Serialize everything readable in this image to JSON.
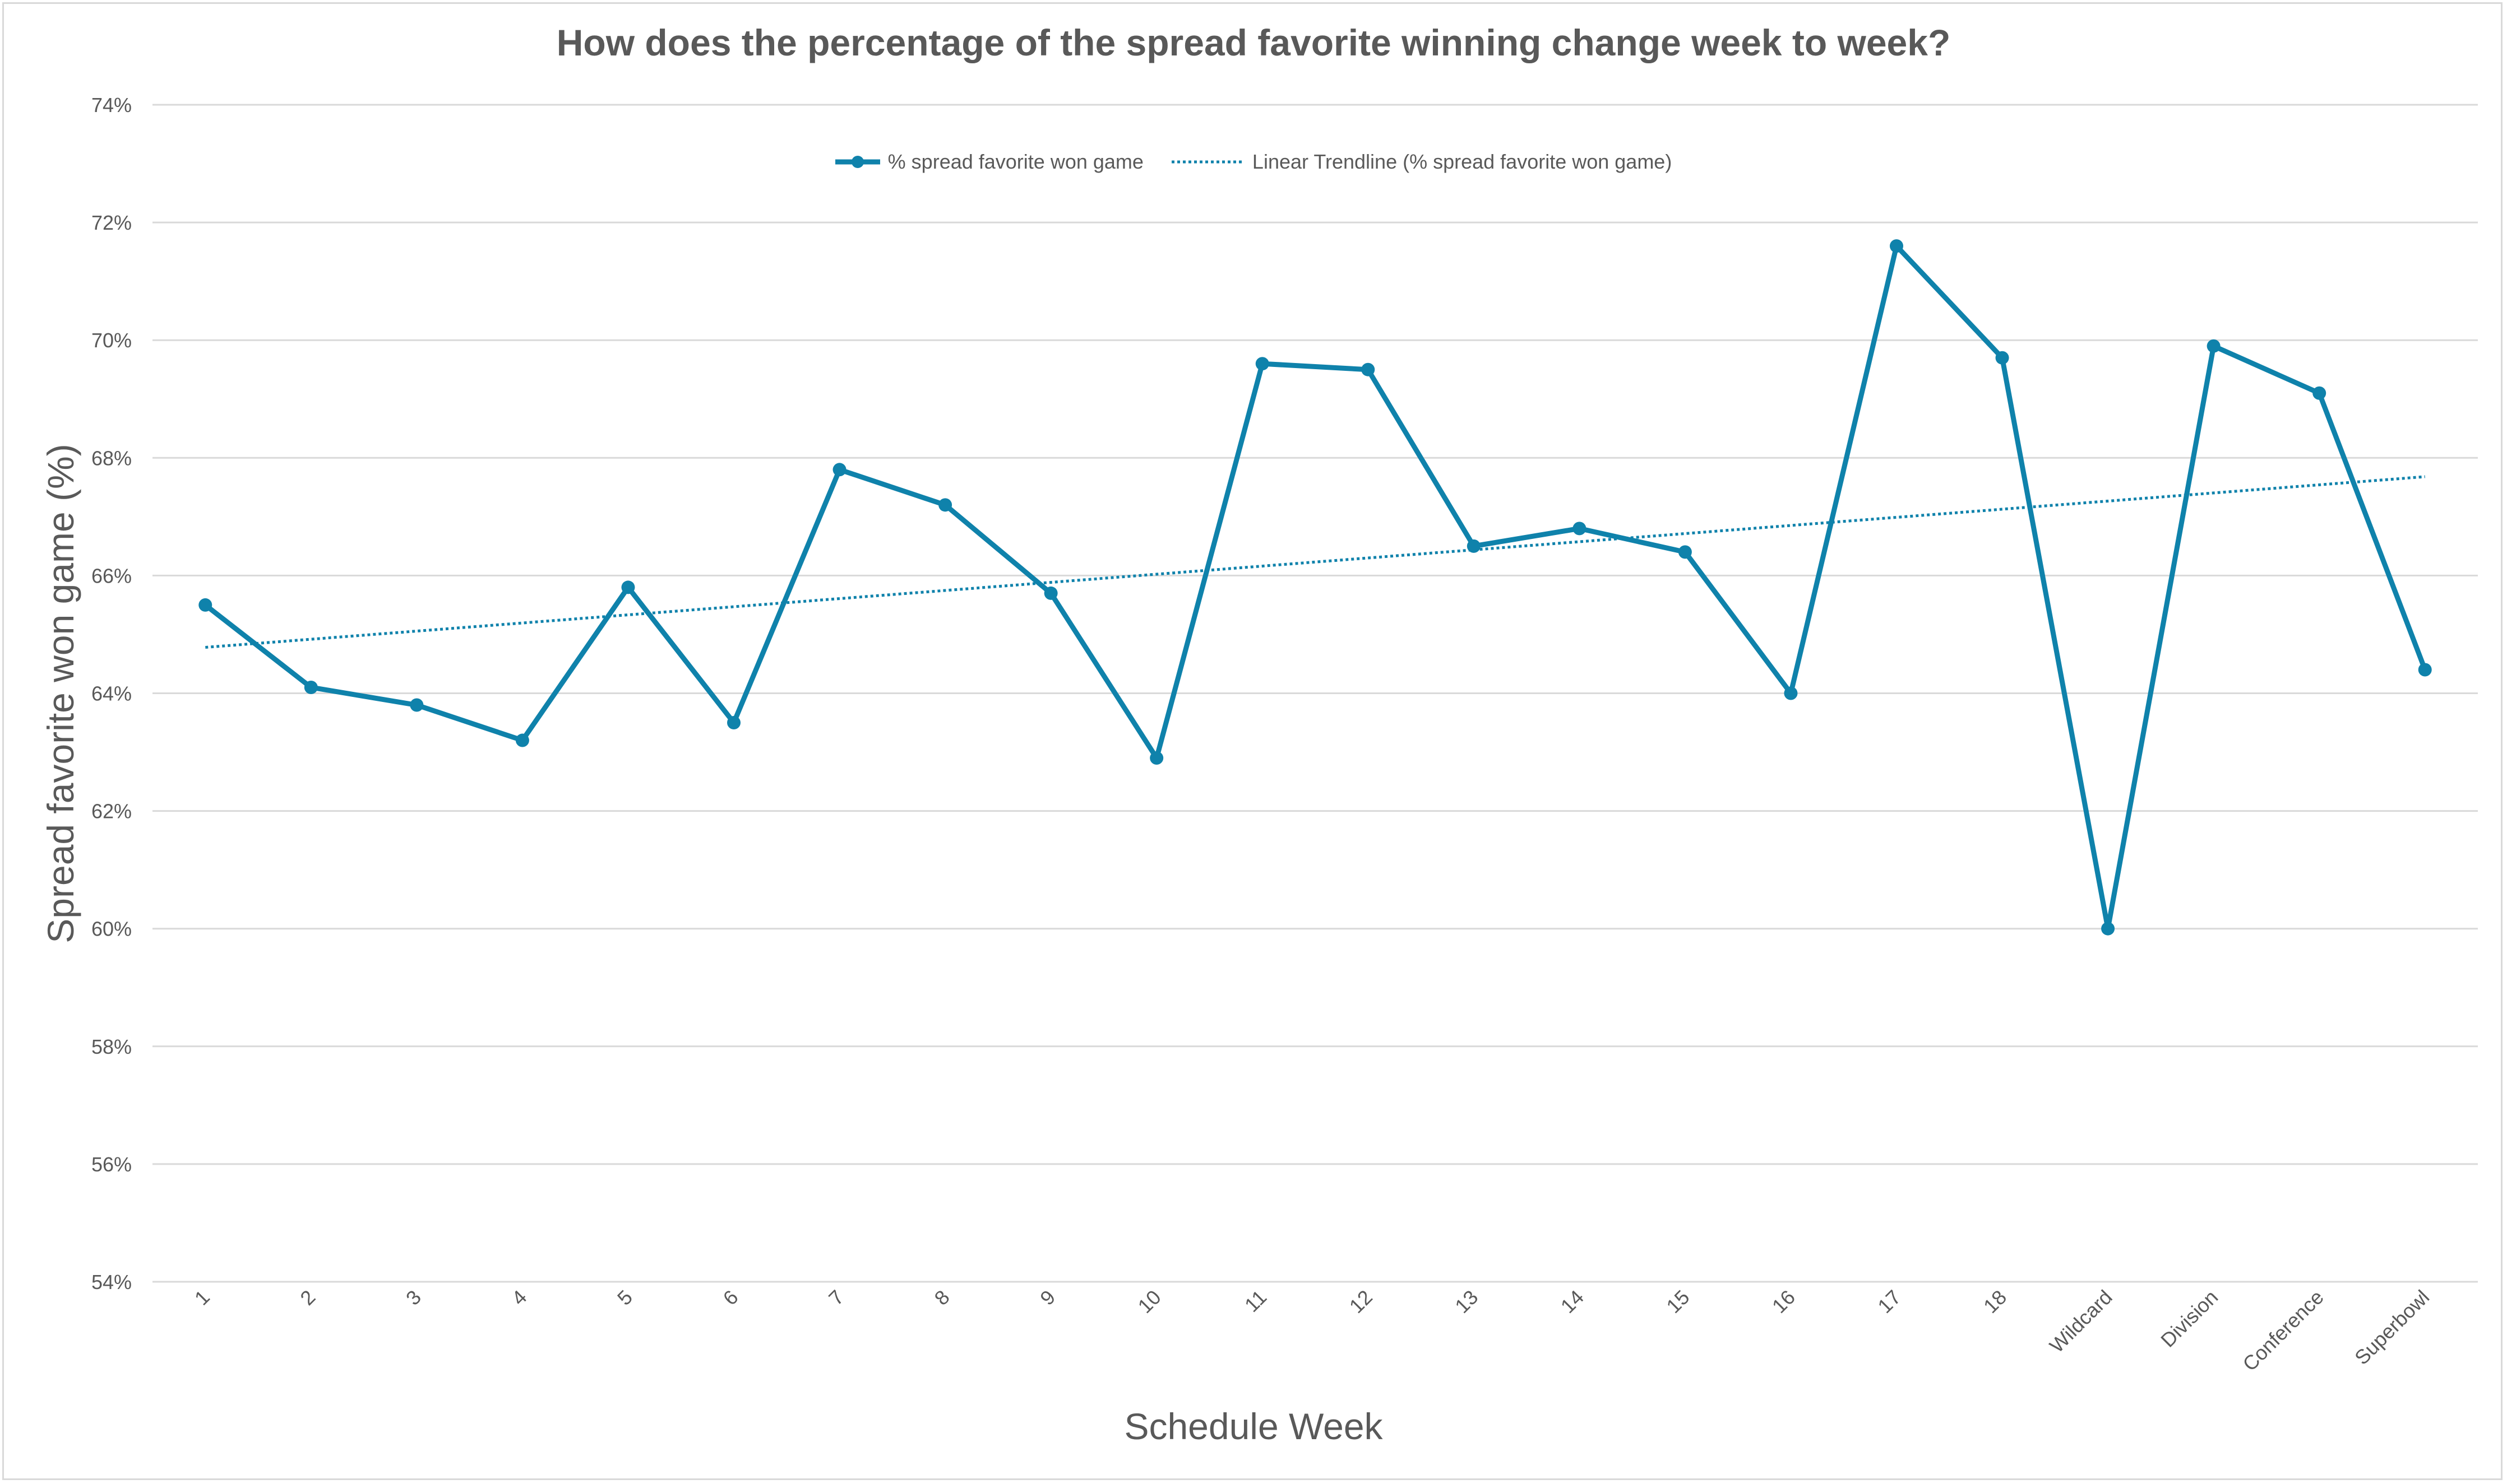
{
  "chart_data": {
    "type": "line",
    "title": "How does the percentage of the spread favorite winning change week to week?",
    "xlabel": "Schedule Week",
    "ylabel": "Spread favorite won game (%)",
    "ylim": [
      54,
      74
    ],
    "yticks": [
      "54%",
      "56%",
      "58%",
      "60%",
      "62%",
      "64%",
      "66%",
      "68%",
      "70%",
      "72%",
      "74%"
    ],
    "ytick_values": [
      54,
      56,
      58,
      60,
      62,
      64,
      66,
      68,
      70,
      72,
      74
    ],
    "categories": [
      "1",
      "2",
      "3",
      "4",
      "5",
      "6",
      "7",
      "8",
      "9",
      "10",
      "11",
      "12",
      "13",
      "14",
      "15",
      "16",
      "17",
      "18",
      "Wildcard",
      "Division",
      "Conference",
      "Superbowl"
    ],
    "series": [
      {
        "name": "% spread favorite won game",
        "values": [
          65.5,
          64.1,
          63.8,
          63.2,
          65.8,
          63.5,
          67.8,
          67.2,
          65.7,
          62.9,
          69.6,
          69.5,
          66.5,
          66.8,
          66.4,
          64.0,
          71.6,
          69.7,
          60.0,
          69.9,
          69.1,
          64.4
        ],
        "color": "#0f82ab"
      }
    ],
    "trendline": {
      "name": "Linear Trendline (% spread favorite won game)",
      "type": "linear",
      "start": 64.78,
      "end": 67.68,
      "color": "#0f82ab"
    },
    "grid": true,
    "legend_position": "top"
  }
}
